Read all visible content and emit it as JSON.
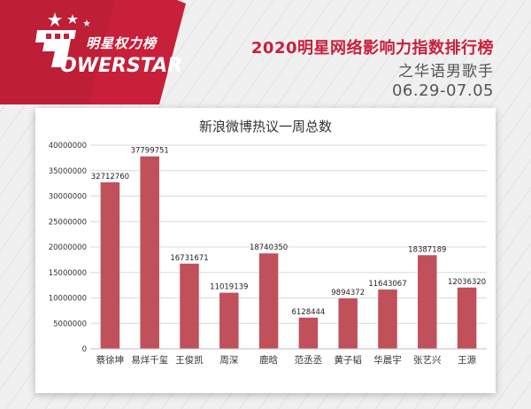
{
  "header": {
    "logo_cn": "明星权力榜",
    "logo_en": "OWERSTAR",
    "title": "2020明星网络影响力指数排行榜",
    "subtitle": "之华语男歌手",
    "date_range": "06.29-07.05"
  },
  "colors": {
    "bar": "#c0505a",
    "banner": "#c8203a",
    "title": "#c8203a"
  },
  "chart_data": {
    "type": "bar",
    "title": "新浪微博热议一周总数",
    "categories": [
      "蔡徐坤",
      "易烊千玺",
      "王俊凯",
      "周深",
      "鹿晗",
      "范丞丞",
      "黄子韬",
      "华晨宇",
      "张艺兴",
      "王源"
    ],
    "values": [
      32712760,
      37799751,
      16731671,
      11019139,
      18740350,
      6128444,
      9894372,
      11643067,
      18387189,
      12036320
    ],
    "value_labels": [
      "32712760",
      "37799751",
      "16731671",
      "11019139",
      "18740350",
      "6128444",
      "9894372",
      "11643067",
      "18387189",
      "12036320"
    ],
    "yticks": [
      "0",
      "5000000",
      "10000000",
      "15000000",
      "20000000",
      "25000000",
      "30000000",
      "35000000",
      "40000000"
    ],
    "ylim": [
      0,
      40000000
    ],
    "grid": true,
    "xlabel": "",
    "ylabel": ""
  }
}
